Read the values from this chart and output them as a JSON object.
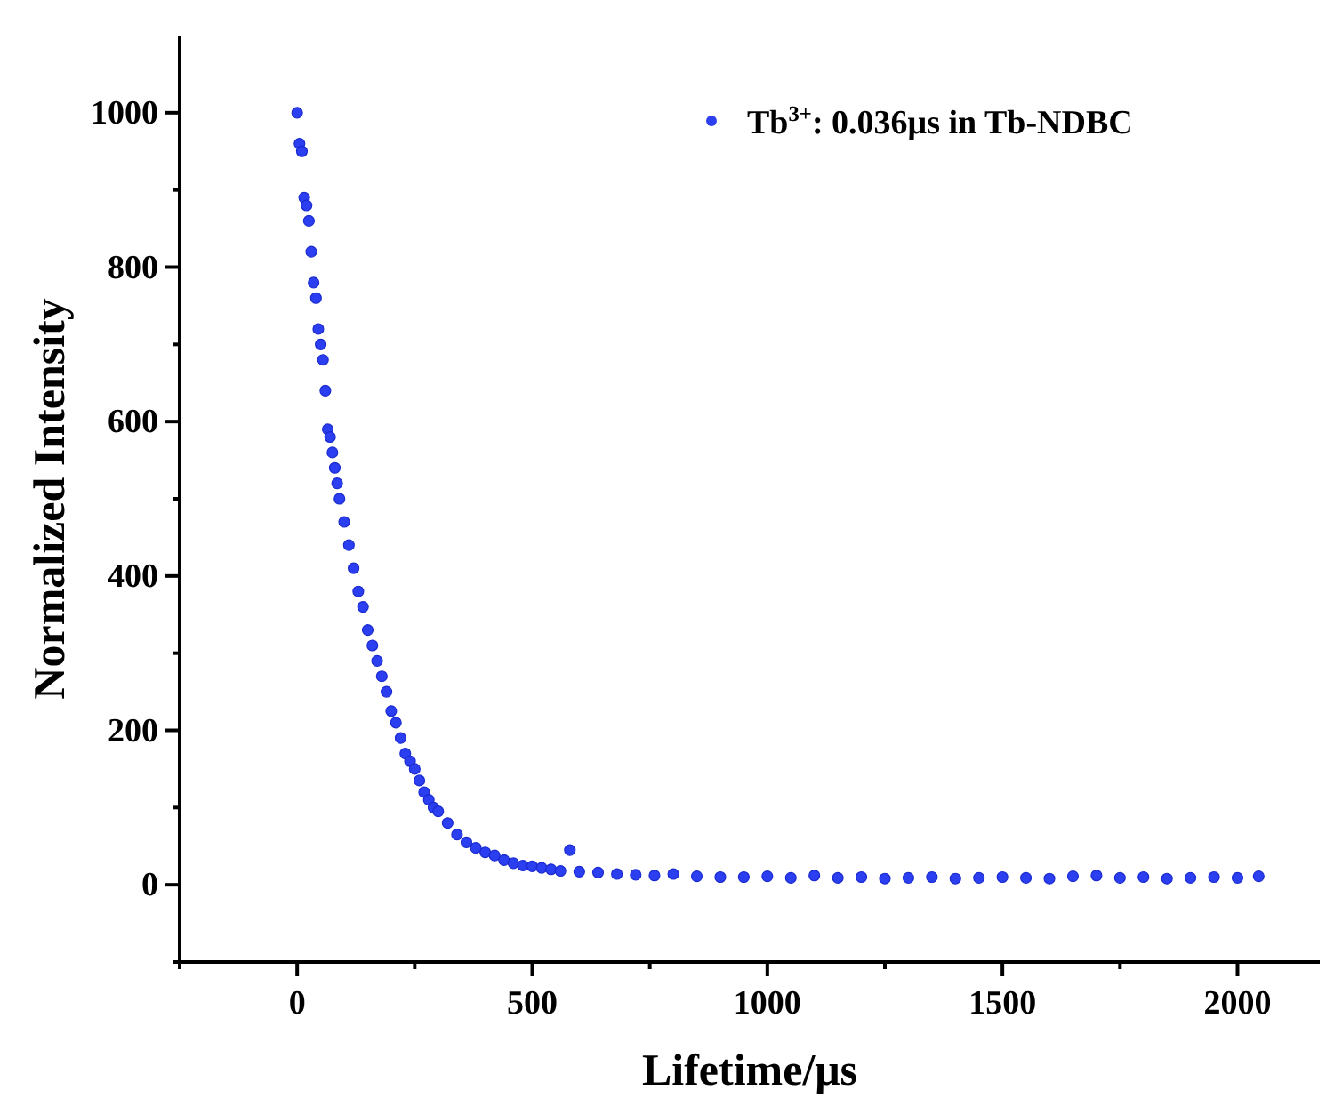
{
  "chart_data": {
    "type": "scatter",
    "xlabel": "Lifetime/μs",
    "ylabel": "Normalized Intensity",
    "xlim": [
      -250,
      2175
    ],
    "ylim": [
      -100,
      1100
    ],
    "xticks": [
      {
        "value": -250,
        "label": null
      },
      0,
      {
        "value": 250,
        "label": null
      },
      500,
      {
        "value": 750,
        "label": null
      },
      1000,
      {
        "value": 1250,
        "label": null
      },
      1500,
      {
        "value": 1750,
        "label": null
      },
      2000
    ],
    "yticks": [
      {
        "value": -100,
        "label": null
      },
      0,
      {
        "value": 100,
        "label": null
      },
      200,
      {
        "value": 300,
        "label": null
      },
      400,
      {
        "value": 500,
        "label": null
      },
      600,
      {
        "value": 700,
        "label": null
      },
      800,
      {
        "value": 900,
        "label": null
      },
      1000
    ],
    "grid": false,
    "legend": "top right",
    "marker": "circle",
    "series": [
      {
        "name": "Tb$^{3+}$: 0.036μs in Tb-NDBC",
        "color": "#2b3ff0",
        "x": [
          0,
          5,
          10,
          15,
          20,
          25,
          30,
          35,
          40,
          45,
          50,
          55,
          60,
          65,
          70,
          75,
          80,
          85,
          90,
          100,
          110,
          120,
          130,
          140,
          150,
          160,
          170,
          180,
          190,
          200,
          210,
          220,
          230,
          240,
          250,
          260,
          270,
          280,
          290,
          300,
          320,
          340,
          360,
          380,
          400,
          420,
          440,
          460,
          480,
          500,
          520,
          540,
          560,
          580,
          600,
          640,
          680,
          720,
          760,
          800,
          850,
          900,
          950,
          1000,
          1050,
          1100,
          1150,
          1200,
          1250,
          1300,
          1350,
          1400,
          1450,
          1500,
          1550,
          1600,
          1650,
          1700,
          1750,
          1800,
          1850,
          1900,
          1950,
          2000,
          2045
        ],
        "values": [
          1000,
          960,
          950,
          890,
          880,
          860,
          820,
          780,
          760,
          720,
          700,
          680,
          640,
          590,
          580,
          560,
          540,
          520,
          500,
          470,
          440,
          410,
          380,
          360,
          330,
          310,
          290,
          270,
          250,
          225,
          210,
          190,
          170,
          160,
          150,
          135,
          120,
          110,
          100,
          95,
          80,
          65,
          55,
          48,
          42,
          38,
          32,
          28,
          25,
          24,
          22,
          20,
          18,
          45,
          17,
          16,
          14,
          13,
          12,
          14,
          11,
          10,
          10,
          11,
          9,
          12,
          9,
          10,
          8,
          9,
          10,
          8,
          9,
          10,
          9,
          8,
          11,
          12,
          9,
          10,
          8,
          9,
          10,
          9,
          11
        ]
      }
    ]
  }
}
